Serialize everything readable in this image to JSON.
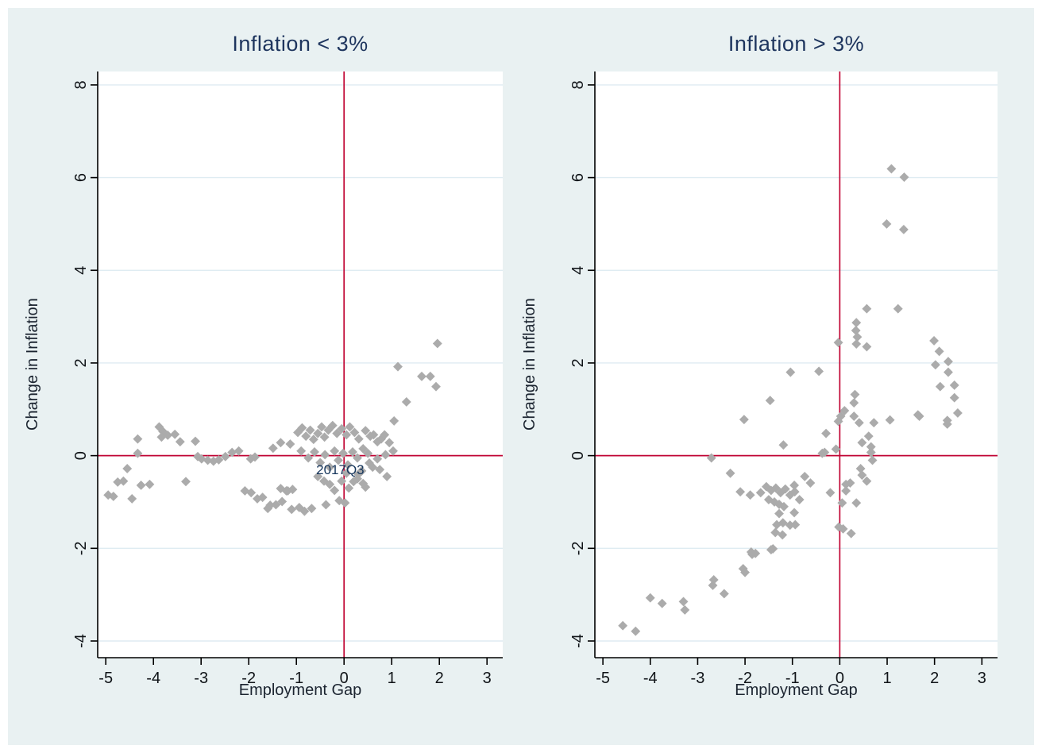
{
  "figure": {
    "background_color": "#e9f1f2",
    "plot_background": "#ffffff",
    "grid_color": "#dfecf2",
    "axis_color": "#000000",
    "tick_text_color": "#101418",
    "refline_color": "#c10534",
    "marker_color": "#ababab",
    "title_color": "#1e355e",
    "point_label_color": "#16365c"
  },
  "chart_data": [
    {
      "type": "scatter",
      "title": "Inflation < 3%",
      "xlabel": "Employment Gap",
      "ylabel": "Change in Inflation",
      "xlim": [
        -5.17,
        3.33
      ],
      "ylim": [
        -4.36,
        8.29
      ],
      "xticks": [
        -5,
        -4,
        -3,
        -2,
        -1,
        0,
        1,
        2,
        3
      ],
      "yticks": [
        -4,
        -2,
        0,
        2,
        4,
        6,
        8
      ],
      "grid": "horizontal",
      "legend": "none",
      "marker": "diamond",
      "refline_x": 0,
      "refline_y": 0,
      "point_label": {
        "text": "2017Q3",
        "x": -0.08,
        "y": -0.3
      },
      "points": [
        [
          -4.95,
          -0.85
        ],
        [
          -4.84,
          -0.88
        ],
        [
          -4.75,
          -0.57
        ],
        [
          -4.63,
          -0.55
        ],
        [
          -4.55,
          -0.28
        ],
        [
          -4.45,
          -0.93
        ],
        [
          -4.33,
          0.36
        ],
        [
          -4.33,
          0.05
        ],
        [
          -4.26,
          -0.64
        ],
        [
          -4.08,
          -0.62
        ],
        [
          -3.88,
          0.62
        ],
        [
          -3.8,
          0.52
        ],
        [
          -3.83,
          0.4
        ],
        [
          -3.7,
          0.44
        ],
        [
          -3.55,
          0.46
        ],
        [
          -3.44,
          0.3
        ],
        [
          -3.32,
          -0.56
        ],
        [
          -3.12,
          0.31
        ],
        [
          -3.07,
          -0.02
        ],
        [
          -2.99,
          -0.07
        ],
        [
          -2.86,
          -0.1
        ],
        [
          -2.74,
          -0.12
        ],
        [
          -2.63,
          -0.09
        ],
        [
          -2.49,
          -0.02
        ],
        [
          -2.35,
          0.07
        ],
        [
          -2.21,
          0.1
        ],
        [
          -1.96,
          -0.07
        ],
        [
          -1.87,
          -0.03
        ],
        [
          -2.08,
          -0.76
        ],
        [
          -1.95,
          -0.8
        ],
        [
          -1.82,
          -0.93
        ],
        [
          -1.71,
          -0.9
        ],
        [
          -1.6,
          -1.14
        ],
        [
          -1.55,
          -1.07
        ],
        [
          -1.43,
          -1.06
        ],
        [
          -1.3,
          -0.99
        ],
        [
          -1.18,
          -0.76
        ],
        [
          -1.1,
          -1.16
        ],
        [
          -0.94,
          -1.12
        ],
        [
          -0.83,
          -1.2
        ],
        [
          -0.68,
          -1.14
        ],
        [
          -1.33,
          -0.71
        ],
        [
          -1.21,
          -0.76
        ],
        [
          -1.08,
          -0.73
        ],
        [
          -1.49,
          0.16
        ],
        [
          -1.33,
          0.28
        ],
        [
          -1.13,
          0.25
        ],
        [
          -0.97,
          0.5
        ],
        [
          -0.88,
          0.6
        ],
        [
          -0.8,
          0.42
        ],
        [
          -0.71,
          0.55
        ],
        [
          -0.64,
          0.35
        ],
        [
          -0.55,
          0.48
        ],
        [
          -0.47,
          0.62
        ],
        [
          -0.41,
          0.4
        ],
        [
          -0.33,
          0.55
        ],
        [
          -0.24,
          0.65
        ],
        [
          -0.15,
          0.48
        ],
        [
          -0.05,
          0.58
        ],
        [
          0.05,
          0.45
        ],
        [
          0.12,
          0.62
        ],
        [
          0.22,
          0.5
        ],
        [
          0.31,
          0.36
        ],
        [
          -0.9,
          0.1
        ],
        [
          -0.75,
          -0.05
        ],
        [
          -0.62,
          0.08
        ],
        [
          -0.5,
          -0.15
        ],
        [
          -0.4,
          0.02
        ],
        [
          -0.3,
          -0.25
        ],
        [
          -0.2,
          0.1
        ],
        [
          -0.12,
          -0.1
        ],
        [
          -0.02,
          0.05
        ],
        [
          0.08,
          -0.2
        ],
        [
          0.18,
          0.08
        ],
        [
          0.28,
          -0.05
        ],
        [
          0.4,
          0.15
        ],
        [
          0.5,
          0.05
        ],
        [
          -0.55,
          -0.45
        ],
        [
          -0.42,
          -0.55
        ],
        [
          -0.3,
          -0.62
        ],
        [
          -0.38,
          -1.06
        ],
        [
          -0.1,
          -0.97
        ],
        [
          -0.2,
          -0.75
        ],
        [
          -0.05,
          -0.55
        ],
        [
          0.02,
          -1.02
        ],
        [
          0.1,
          -0.7
        ],
        [
          0.05,
          -0.38
        ],
        [
          0.2,
          -0.56
        ],
        [
          0.3,
          -0.4
        ],
        [
          0.4,
          -0.6
        ],
        [
          0.45,
          -0.68
        ],
        [
          0.28,
          -0.5
        ],
        [
          0.37,
          -0.33
        ],
        [
          0.45,
          0.54
        ],
        [
          0.55,
          0.42
        ],
        [
          0.62,
          0.45
        ],
        [
          0.7,
          0.3
        ],
        [
          0.78,
          0.36
        ],
        [
          0.85,
          0.45
        ],
        [
          0.95,
          0.28
        ],
        [
          1.03,
          0.1
        ],
        [
          0.87,
          0.02
        ],
        [
          0.7,
          -0.07
        ],
        [
          0.53,
          -0.16
        ],
        [
          0.6,
          -0.25
        ],
        [
          0.75,
          -0.3
        ],
        [
          0.9,
          -0.45
        ],
        [
          1.05,
          0.75
        ],
        [
          1.13,
          1.92
        ],
        [
          1.31,
          1.16
        ],
        [
          1.63,
          1.71
        ],
        [
          1.81,
          1.71
        ],
        [
          1.93,
          1.49
        ],
        [
          1.96,
          2.42
        ]
      ]
    },
    {
      "type": "scatter",
      "title": "Inflation > 3%",
      "xlabel": "Employment Gap",
      "ylabel": "Change in Inflation",
      "xlim": [
        -5.17,
        3.33
      ],
      "ylim": [
        -4.36,
        8.29
      ],
      "xticks": [
        -5,
        -4,
        -3,
        -2,
        -1,
        0,
        1,
        2,
        3
      ],
      "yticks": [
        -4,
        -2,
        0,
        2,
        4,
        6,
        8
      ],
      "grid": "horizontal",
      "legend": "none",
      "marker": "diamond",
      "refline_x": 0,
      "refline_y": 0,
      "points": [
        [
          -4.58,
          -3.67
        ],
        [
          -4.31,
          -3.79
        ],
        [
          -4.0,
          -3.07
        ],
        [
          -3.75,
          -3.19
        ],
        [
          -3.3,
          -3.15
        ],
        [
          -3.27,
          -3.33
        ],
        [
          -2.68,
          -2.8
        ],
        [
          -2.66,
          -2.68
        ],
        [
          -2.44,
          -2.98
        ],
        [
          -2.04,
          -2.44
        ],
        [
          -2.0,
          -2.52
        ],
        [
          -1.85,
          -2.13
        ],
        [
          -1.87,
          -2.08
        ],
        [
          -1.78,
          -2.11
        ],
        [
          -1.45,
          -2.03
        ],
        [
          -1.41,
          -2.01
        ],
        [
          -1.36,
          -1.66
        ],
        [
          -1.21,
          -1.71
        ],
        [
          -2.71,
          -0.05
        ],
        [
          -2.31,
          -0.38
        ],
        [
          -2.1,
          -0.78
        ],
        [
          -1.89,
          -0.85
        ],
        [
          -1.67,
          -0.8
        ],
        [
          -1.55,
          -0.67
        ],
        [
          -1.45,
          -0.75
        ],
        [
          -1.35,
          -0.7
        ],
        [
          -1.25,
          -0.8
        ],
        [
          -1.15,
          -0.72
        ],
        [
          -1.05,
          -0.85
        ],
        [
          -0.95,
          -0.78
        ],
        [
          -0.85,
          -0.95
        ],
        [
          -1.5,
          -0.95
        ],
        [
          -1.38,
          -1.0
        ],
        [
          -1.28,
          -1.05
        ],
        [
          -1.18,
          -1.1
        ],
        [
          -1.28,
          -1.25
        ],
        [
          -0.96,
          -1.23
        ],
        [
          -1.33,
          -1.49
        ],
        [
          -1.2,
          -1.45
        ],
        [
          -1.05,
          -1.5
        ],
        [
          -0.94,
          -1.49
        ],
        [
          -0.74,
          -0.45
        ],
        [
          -0.62,
          -0.59
        ],
        [
          -0.96,
          -0.64
        ],
        [
          -0.2,
          -0.8
        ],
        [
          0.13,
          -0.62
        ],
        [
          0.13,
          -0.76
        ],
        [
          0.22,
          -0.59
        ],
        [
          0.57,
          -0.55
        ],
        [
          0.05,
          -1.02
        ],
        [
          0.35,
          -1.02
        ],
        [
          -0.02,
          -1.54
        ],
        [
          0.07,
          -1.58
        ],
        [
          0.24,
          -1.68
        ],
        [
          -1.19,
          0.23
        ],
        [
          -0.37,
          0.05
        ],
        [
          -0.32,
          0.07
        ],
        [
          -0.08,
          0.14
        ],
        [
          -0.29,
          0.48
        ],
        [
          0.47,
          0.28
        ],
        [
          0.61,
          0.42
        ],
        [
          0.66,
          0.19
        ],
        [
          0.66,
          0.07
        ],
        [
          0.69,
          -0.1
        ],
        [
          0.44,
          -0.28
        ],
        [
          0.47,
          -0.42
        ],
        [
          -2.02,
          0.78
        ],
        [
          -1.47,
          1.19
        ],
        [
          -1.04,
          1.8
        ],
        [
          -0.44,
          1.82
        ],
        [
          0.32,
          1.32
        ],
        [
          0.3,
          1.14
        ],
        [
          0.1,
          0.97
        ],
        [
          0.02,
          0.85
        ],
        [
          0.3,
          0.85
        ],
        [
          -0.03,
          0.74
        ],
        [
          0.41,
          0.71
        ],
        [
          0.72,
          0.71
        ],
        [
          1.06,
          0.77
        ],
        [
          1.65,
          0.88
        ],
        [
          -0.03,
          2.44
        ],
        [
          0.35,
          2.87
        ],
        [
          0.34,
          2.7
        ],
        [
          0.37,
          2.56
        ],
        [
          0.35,
          2.41
        ],
        [
          0.57,
          2.35
        ],
        [
          0.57,
          3.17
        ],
        [
          1.23,
          3.17
        ],
        [
          0.99,
          5.0
        ],
        [
          1.35,
          4.88
        ],
        [
          1.09,
          6.19
        ],
        [
          1.36,
          6.01
        ],
        [
          1.99,
          2.48
        ],
        [
          2.1,
          2.25
        ],
        [
          2.29,
          2.03
        ],
        [
          2.02,
          1.96
        ],
        [
          2.29,
          1.8
        ],
        [
          2.12,
          1.49
        ],
        [
          2.42,
          1.52
        ],
        [
          2.42,
          1.25
        ],
        [
          2.49,
          0.92
        ],
        [
          2.27,
          0.76
        ],
        [
          2.27,
          0.68
        ],
        [
          1.68,
          0.85
        ]
      ]
    }
  ]
}
